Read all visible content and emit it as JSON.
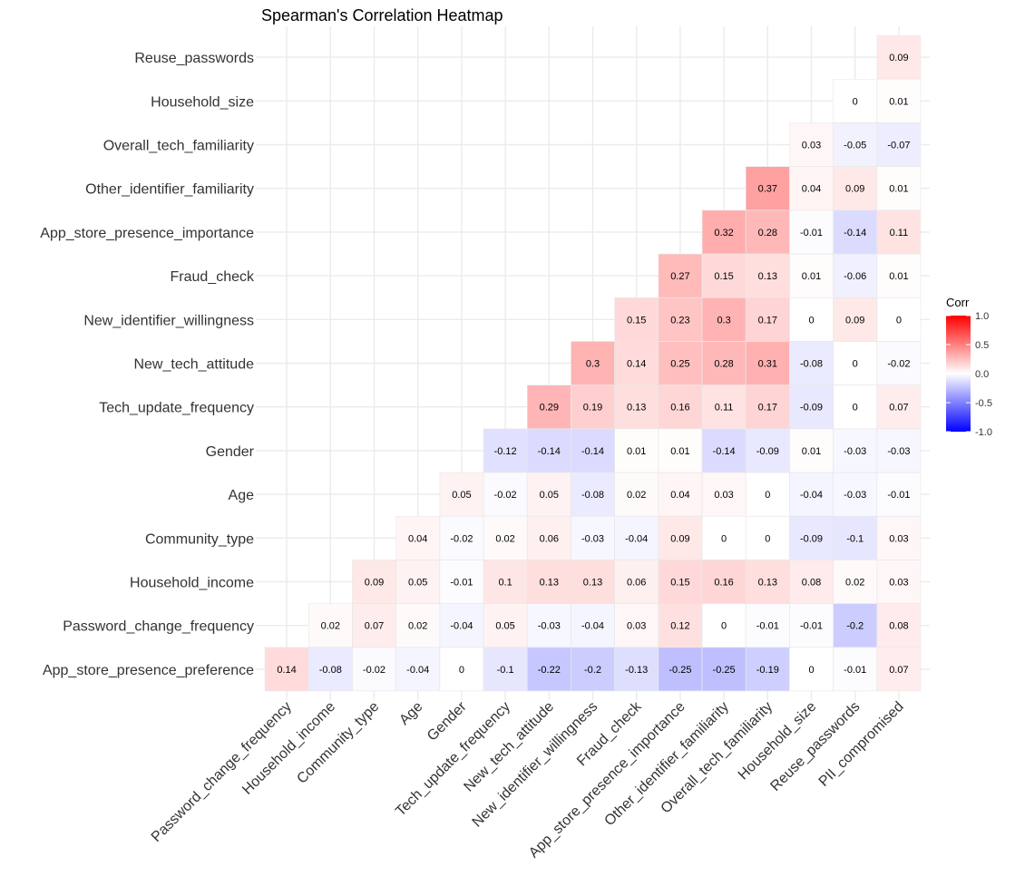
{
  "chart_data": {
    "type": "heatmap",
    "title": "Spearman's Correlation Heatmap",
    "x_labels": [
      "Password_change_frequency",
      "Household_income",
      "Community_type",
      "Age",
      "Gender",
      "Tech_update_frequency",
      "New_tech_attitude",
      "New_identifier_willingness",
      "Fraud_check",
      "App_store_presence_importance",
      "Other_identifier_familiarity",
      "Overall_tech_familiarity",
      "Household_size",
      "Reuse_passwords",
      "PII_compromised"
    ],
    "y_labels": [
      "App_store_presence_preference",
      "Password_change_frequency",
      "Household_income",
      "Community_type",
      "Age",
      "Gender",
      "Tech_update_frequency",
      "New_tech_attitude",
      "New_identifier_willingness",
      "Fraud_check",
      "App_store_presence_importance",
      "Other_identifier_familiarity",
      "Overall_tech_familiarity",
      "Household_size",
      "Reuse_passwords"
    ],
    "values": [
      [
        0.14,
        -0.08,
        -0.02,
        -0.04,
        0,
        -0.1,
        -0.22,
        -0.2,
        -0.13,
        -0.25,
        -0.25,
        -0.19,
        0,
        -0.01,
        0.07
      ],
      [
        null,
        0.02,
        0.07,
        0.02,
        -0.04,
        0.05,
        -0.03,
        -0.04,
        0.03,
        0.12,
        0,
        -0.01,
        -0.01,
        -0.2,
        0.08
      ],
      [
        null,
        null,
        0.09,
        0.05,
        -0.01,
        0.1,
        0.13,
        0.13,
        0.06,
        0.15,
        0.16,
        0.13,
        0.08,
        0.02,
        0.03
      ],
      [
        null,
        null,
        null,
        0.04,
        -0.02,
        0.02,
        0.06,
        -0.03,
        -0.04,
        0.09,
        0,
        0,
        -0.09,
        -0.1,
        0.03
      ],
      [
        null,
        null,
        null,
        null,
        0.05,
        -0.02,
        0.05,
        -0.08,
        0.02,
        0.04,
        0.03,
        0,
        -0.04,
        -0.03,
        -0.01
      ],
      [
        null,
        null,
        null,
        null,
        null,
        -0.12,
        -0.14,
        -0.14,
        0.01,
        0.01,
        -0.14,
        -0.09,
        0.01,
        -0.03,
        -0.03
      ],
      [
        null,
        null,
        null,
        null,
        null,
        null,
        0.29,
        0.19,
        0.13,
        0.16,
        0.11,
        0.17,
        -0.09,
        0,
        0.07
      ],
      [
        null,
        null,
        null,
        null,
        null,
        null,
        null,
        0.3,
        0.14,
        0.25,
        0.28,
        0.31,
        -0.08,
        0,
        -0.02
      ],
      [
        null,
        null,
        null,
        null,
        null,
        null,
        null,
        null,
        0.15,
        0.23,
        0.3,
        0.17,
        0,
        0.09,
        0
      ],
      [
        null,
        null,
        null,
        null,
        null,
        null,
        null,
        null,
        null,
        0.27,
        0.15,
        0.13,
        0.01,
        -0.06,
        0.01
      ],
      [
        null,
        null,
        null,
        null,
        null,
        null,
        null,
        null,
        null,
        null,
        0.32,
        0.28,
        -0.01,
        -0.14,
        0.11
      ],
      [
        null,
        null,
        null,
        null,
        null,
        null,
        null,
        null,
        null,
        null,
        null,
        0.37,
        0.04,
        0.09,
        0.01
      ],
      [
        null,
        null,
        null,
        null,
        null,
        null,
        null,
        null,
        null,
        null,
        null,
        null,
        0.03,
        -0.05,
        -0.07
      ],
      [
        null,
        null,
        null,
        null,
        null,
        null,
        null,
        null,
        null,
        null,
        null,
        null,
        null,
        0,
        0.01
      ],
      [
        null,
        null,
        null,
        null,
        null,
        null,
        null,
        null,
        null,
        null,
        null,
        null,
        null,
        null,
        0.09
      ]
    ],
    "legend": {
      "title": "Corr",
      "ticks": [
        "1.0",
        "0.5",
        "0.0",
        "-0.5",
        "-1.0"
      ],
      "tick_values": [
        1.0,
        0.5,
        0.0,
        -0.5,
        -1.0
      ],
      "range": [
        -1.0,
        1.0
      ],
      "placement": "right"
    },
    "colors": {
      "low": "#0000ff",
      "mid": "#ffffff",
      "high": "#ff0000",
      "grid": "#ebebeb",
      "tile_border": "#e8e8e8"
    }
  }
}
